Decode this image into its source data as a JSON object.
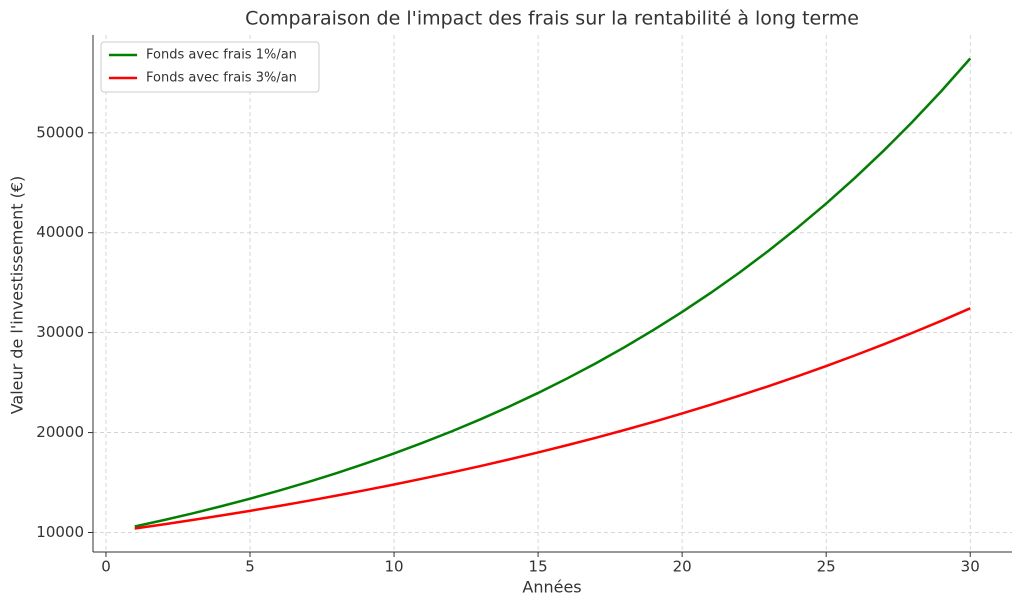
{
  "chart_data": {
    "type": "line",
    "title": "Comparaison de l'impact des frais sur la rentabilité à long terme",
    "x_label": "Années",
    "y_label": "Valeur de l'investissement (€)",
    "x": [
      1,
      2,
      3,
      4,
      5,
      6,
      7,
      8,
      9,
      10,
      11,
      12,
      13,
      14,
      15,
      16,
      17,
      18,
      19,
      20,
      21,
      22,
      23,
      24,
      25,
      26,
      27,
      28,
      29,
      30
    ],
    "series": [
      {
        "name": "Fonds avec frais 1%/an",
        "color": "#008000",
        "values": [
          10600,
          11236,
          11910,
          12625,
          13382,
          14185,
          15036,
          15938,
          16895,
          17908,
          18983,
          20122,
          21329,
          22609,
          23966,
          25404,
          26928,
          28543,
          30256,
          32071,
          33996,
          36035,
          38197,
          40489,
          42919,
          45494,
          48223,
          51117,
          54184,
          57435
        ]
      },
      {
        "name": "Fonds avec frais 3%/an",
        "color": "#ff0000",
        "values": [
          10400,
          10816,
          11249,
          11699,
          12167,
          12653,
          13159,
          13686,
          14233,
          14802,
          15395,
          16010,
          16651,
          17317,
          18009,
          18730,
          19479,
          20258,
          21068,
          21911,
          22788,
          23699,
          24647,
          25633,
          26658,
          27725,
          28834,
          29987,
          31187,
          32434
        ]
      }
    ],
    "xlim": [
      -0.45,
      31.45
    ],
    "ylim": [
      8048,
      59787
    ],
    "xticks": [
      0,
      5,
      10,
      15,
      20,
      25,
      30
    ],
    "yticks": [
      10000,
      20000,
      30000,
      40000,
      50000
    ],
    "grid": true,
    "legend": "upper-left"
  }
}
